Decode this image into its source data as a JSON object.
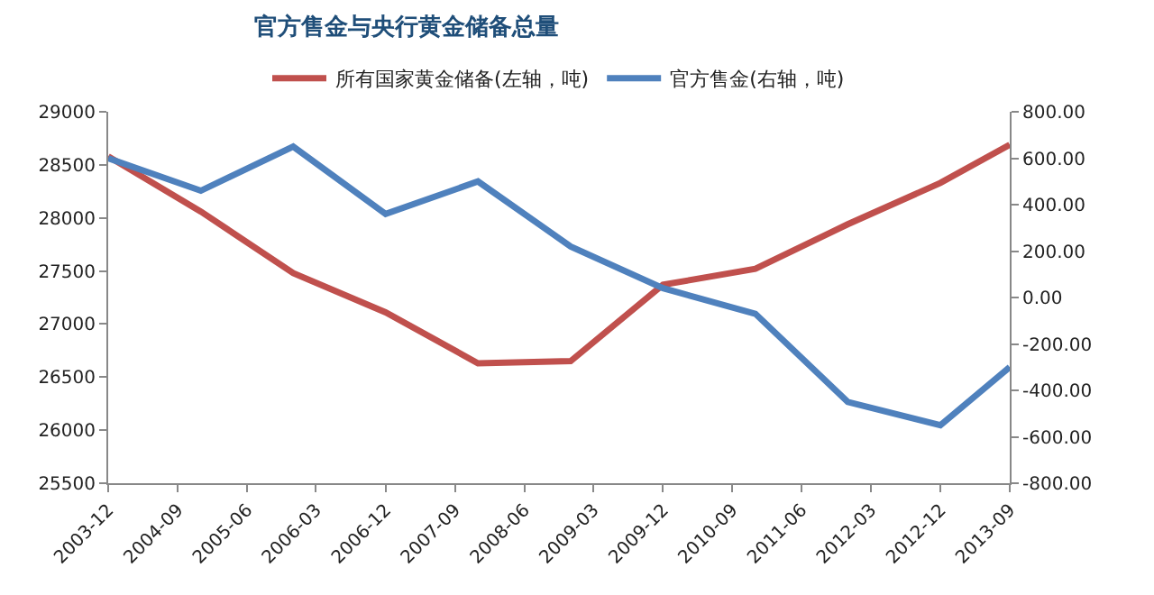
{
  "chart_data": {
    "type": "line",
    "title": "官方售金与央行黄金储备总量",
    "x": [
      "2003-12",
      "2004-12",
      "2005-12",
      "2006-12",
      "2007-12",
      "2008-12",
      "2009-12",
      "2010-12",
      "2011-12",
      "2012-12",
      "2013-09"
    ],
    "series": [
      {
        "name": "所有国家黄金储备(左轴，吨)",
        "color": "#c0504d",
        "values": [
          28580,
          28060,
          27480,
          27110,
          26630,
          26650,
          27370,
          27520,
          27940,
          28330,
          28690
        ]
      },
      {
        "name": "官方售金(右轴，吨)",
        "color": "#4f81bd",
        "axis": "y2",
        "values": [
          600,
          460,
          650,
          360,
          500,
          220,
          40,
          -70,
          -450,
          -550,
          -300
        ]
      }
    ],
    "xlim": [
      "2003-12",
      "2013-09"
    ],
    "xticks": [
      "2003-12",
      "2004-09",
      "2005-06",
      "2006-03",
      "2006-12",
      "2007-09",
      "2008-06",
      "2009-03",
      "2009-12",
      "2010-09",
      "2011-06",
      "2012-03",
      "2012-12",
      "2013-09"
    ],
    "ylim": [
      25500,
      29000
    ],
    "yticks": [
      25500,
      26000,
      26500,
      27000,
      27500,
      28000,
      28500,
      29000
    ],
    "y2lim": [
      -800,
      800
    ],
    "y2ticks": [
      {
        "value": -800,
        "label": "-800.00"
      },
      {
        "value": -600,
        "label": "-600.00"
      },
      {
        "value": -400,
        "label": "-400.00"
      },
      {
        "value": -200,
        "label": "-200.00"
      },
      {
        "value": 0,
        "label": "0.00"
      },
      {
        "value": 200,
        "label": "200.00"
      },
      {
        "value": 400,
        "label": "400.00"
      },
      {
        "value": 600,
        "label": "600.00"
      },
      {
        "value": 800,
        "label": "800.00"
      }
    ],
    "grid": false,
    "legend": "top",
    "marker": "none",
    "line_style": "solid"
  }
}
